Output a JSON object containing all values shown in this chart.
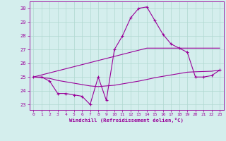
{
  "xlabel": "Windchill (Refroidissement éolien,°C)",
  "background_color": "#d4eeed",
  "grid_color": "#b0d8d0",
  "line_color": "#990099",
  "x": [
    0,
    1,
    2,
    3,
    4,
    5,
    6,
    7,
    8,
    9,
    10,
    11,
    12,
    13,
    14,
    15,
    16,
    17,
    18,
    19,
    20,
    21,
    22,
    23
  ],
  "y_main": [
    25.0,
    25.0,
    24.7,
    23.8,
    23.8,
    23.7,
    23.6,
    23.0,
    25.0,
    23.3,
    27.0,
    28.0,
    29.3,
    30.0,
    30.1,
    29.1,
    28.1,
    27.4,
    27.1,
    26.8,
    25.0,
    25.0,
    25.1,
    25.5
  ],
  "y_trend1": [
    25.0,
    25.15,
    25.3,
    25.45,
    25.6,
    25.75,
    25.9,
    26.05,
    26.2,
    26.35,
    26.5,
    26.65,
    26.8,
    26.95,
    27.1,
    27.1,
    27.1,
    27.1,
    27.1,
    27.1,
    27.1,
    27.1,
    27.1,
    27.1
  ],
  "y_trend2": [
    25.0,
    24.95,
    24.9,
    24.75,
    24.65,
    24.55,
    24.45,
    24.35,
    24.3,
    24.35,
    24.4,
    24.5,
    24.6,
    24.7,
    24.82,
    24.95,
    25.05,
    25.15,
    25.25,
    25.35,
    25.38,
    25.4,
    25.42,
    25.5
  ],
  "ylim": [
    22.6,
    30.5
  ],
  "yticks": [
    23,
    24,
    25,
    26,
    27,
    28,
    29,
    30
  ],
  "xlim": [
    -0.5,
    23.5
  ],
  "xticks": [
    0,
    1,
    2,
    3,
    4,
    5,
    6,
    7,
    8,
    9,
    10,
    11,
    12,
    13,
    14,
    15,
    16,
    17,
    18,
    19,
    20,
    21,
    22,
    23
  ]
}
